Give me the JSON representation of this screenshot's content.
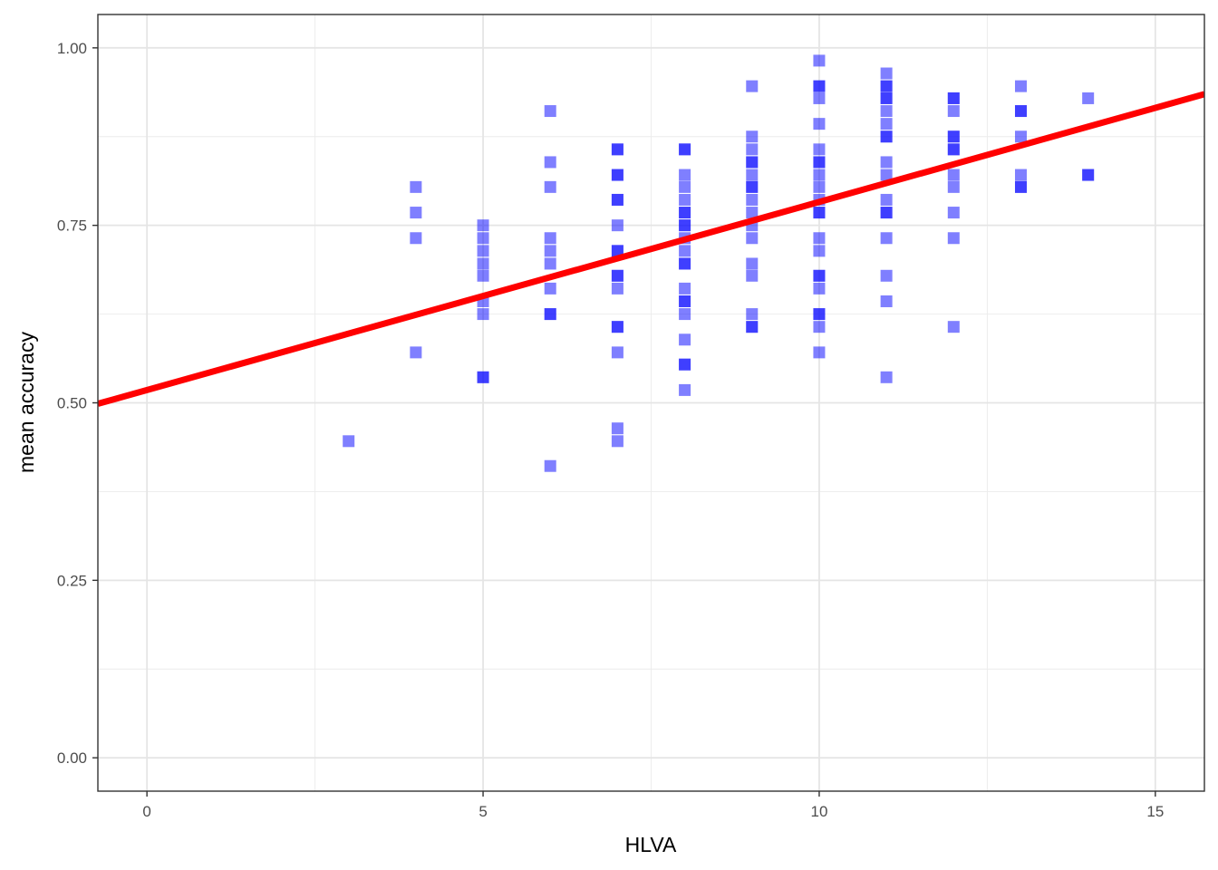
{
  "chart_data": {
    "type": "scatter",
    "title": "",
    "xlabel": "HLVA",
    "ylabel": "mean accuracy",
    "xlim": [
      -0.73,
      15.73
    ],
    "ylim": [
      -0.047,
      1.047
    ],
    "x_ticks": [
      0,
      5,
      10,
      15
    ],
    "x_tick_labels": [
      "0",
      "5",
      "10",
      "15"
    ],
    "y_ticks": [
      0,
      0.25,
      0.5,
      0.75,
      1.0
    ],
    "y_tick_labels": [
      "0.00",
      "0.25",
      "0.50",
      "0.75",
      "1.00"
    ],
    "grid": true,
    "legend": "none",
    "point_color": "#0000ff",
    "point_alpha": 0.5,
    "line_color": "#ff0000",
    "fit_line": {
      "intercept": 0.518,
      "slope": 0.0265
    },
    "points": [
      [
        3,
        0.446
      ],
      [
        4,
        0.571
      ],
      [
        4,
        0.732
      ],
      [
        4,
        0.768
      ],
      [
        4,
        0.804
      ],
      [
        5,
        0.536
      ],
      [
        5,
        0.536
      ],
      [
        5,
        0.625
      ],
      [
        5,
        0.643
      ],
      [
        5,
        0.679
      ],
      [
        5,
        0.696
      ],
      [
        5,
        0.714
      ],
      [
        5,
        0.732
      ],
      [
        5,
        0.75
      ],
      [
        6,
        0.411
      ],
      [
        6,
        0.625
      ],
      [
        6,
        0.625
      ],
      [
        6,
        0.661
      ],
      [
        6,
        0.696
      ],
      [
        6,
        0.714
      ],
      [
        6,
        0.732
      ],
      [
        6,
        0.804
      ],
      [
        6,
        0.839
      ],
      [
        6,
        0.911
      ],
      [
        7,
        0.446
      ],
      [
        7,
        0.464
      ],
      [
        7,
        0.571
      ],
      [
        7,
        0.607
      ],
      [
        7,
        0.607
      ],
      [
        7,
        0.661
      ],
      [
        7,
        0.679
      ],
      [
        7,
        0.679
      ],
      [
        7,
        0.714
      ],
      [
        7,
        0.714
      ],
      [
        7,
        0.75
      ],
      [
        7,
        0.786
      ],
      [
        7,
        0.786
      ],
      [
        7,
        0.821
      ],
      [
        7,
        0.821
      ],
      [
        7,
        0.857
      ],
      [
        7,
        0.857
      ],
      [
        8,
        0.518
      ],
      [
        8,
        0.554
      ],
      [
        8,
        0.554
      ],
      [
        8,
        0.589
      ],
      [
        8,
        0.625
      ],
      [
        8,
        0.643
      ],
      [
        8,
        0.643
      ],
      [
        8,
        0.661
      ],
      [
        8,
        0.696
      ],
      [
        8,
        0.696
      ],
      [
        8,
        0.714
      ],
      [
        8,
        0.732
      ],
      [
        8,
        0.75
      ],
      [
        8,
        0.75
      ],
      [
        8,
        0.768
      ],
      [
        8,
        0.768
      ],
      [
        8,
        0.786
      ],
      [
        8,
        0.804
      ],
      [
        8,
        0.821
      ],
      [
        8,
        0.857
      ],
      [
        8,
        0.857
      ],
      [
        9,
        0.607
      ],
      [
        9,
        0.607
      ],
      [
        9,
        0.625
      ],
      [
        9,
        0.679
      ],
      [
        9,
        0.696
      ],
      [
        9,
        0.732
      ],
      [
        9,
        0.75
      ],
      [
        9,
        0.768
      ],
      [
        9,
        0.786
      ],
      [
        9,
        0.804
      ],
      [
        9,
        0.804
      ],
      [
        9,
        0.821
      ],
      [
        9,
        0.839
      ],
      [
        9,
        0.839
      ],
      [
        9,
        0.857
      ],
      [
        9,
        0.875
      ],
      [
        9,
        0.946
      ],
      [
        10,
        0.571
      ],
      [
        10,
        0.607
      ],
      [
        10,
        0.625
      ],
      [
        10,
        0.625
      ],
      [
        10,
        0.661
      ],
      [
        10,
        0.679
      ],
      [
        10,
        0.679
      ],
      [
        10,
        0.714
      ],
      [
        10,
        0.732
      ],
      [
        10,
        0.768
      ],
      [
        10,
        0.768
      ],
      [
        10,
        0.786
      ],
      [
        10,
        0.804
      ],
      [
        10,
        0.821
      ],
      [
        10,
        0.839
      ],
      [
        10,
        0.839
      ],
      [
        10,
        0.857
      ],
      [
        10,
        0.893
      ],
      [
        10,
        0.929
      ],
      [
        10,
        0.946
      ],
      [
        10,
        0.946
      ],
      [
        10,
        0.982
      ],
      [
        11,
        0.536
      ],
      [
        11,
        0.643
      ],
      [
        11,
        0.679
      ],
      [
        11,
        0.732
      ],
      [
        11,
        0.768
      ],
      [
        11,
        0.768
      ],
      [
        11,
        0.786
      ],
      [
        11,
        0.821
      ],
      [
        11,
        0.839
      ],
      [
        11,
        0.875
      ],
      [
        11,
        0.875
      ],
      [
        11,
        0.893
      ],
      [
        11,
        0.911
      ],
      [
        11,
        0.929
      ],
      [
        11,
        0.929
      ],
      [
        11,
        0.946
      ],
      [
        11,
        0.946
      ],
      [
        11,
        0.964
      ],
      [
        12,
        0.607
      ],
      [
        12,
        0.732
      ],
      [
        12,
        0.768
      ],
      [
        12,
        0.804
      ],
      [
        12,
        0.821
      ],
      [
        12,
        0.857
      ],
      [
        12,
        0.857
      ],
      [
        12,
        0.875
      ],
      [
        12,
        0.875
      ],
      [
        12,
        0.911
      ],
      [
        12,
        0.929
      ],
      [
        12,
        0.929
      ],
      [
        13,
        0.804
      ],
      [
        13,
        0.804
      ],
      [
        13,
        0.821
      ],
      [
        13,
        0.875
      ],
      [
        13,
        0.911
      ],
      [
        13,
        0.911
      ],
      [
        13,
        0.946
      ],
      [
        14,
        0.821
      ],
      [
        14,
        0.821
      ],
      [
        14,
        0.929
      ]
    ]
  }
}
